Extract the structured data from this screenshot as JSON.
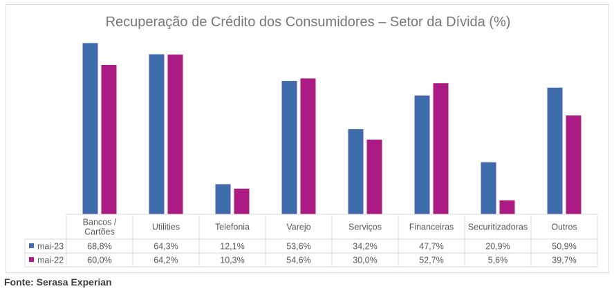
{
  "chart_data": {
    "type": "bar",
    "title": "Recuperação de Crédito dos Consumidores – Setor da Dívida (%)",
    "categories": [
      "Bancos / Cartões",
      "Utilities",
      "Telefonia",
      "Varejo",
      "Serviços",
      "Financeiras",
      "Securitizadoras",
      "Outros"
    ],
    "category_lines": [
      [
        "Bancos /",
        "Cartões"
      ],
      [
        "Utilities"
      ],
      [
        "Telefonia"
      ],
      [
        "Varejo"
      ],
      [
        "Serviços"
      ],
      [
        "Financeiras"
      ],
      [
        "Securitizadoras"
      ],
      [
        "Outros"
      ]
    ],
    "series": [
      {
        "name": "mai-23",
        "color": "#3f6aab",
        "values": [
          68.8,
          64.3,
          12.1,
          53.6,
          34.2,
          47.7,
          20.9,
          50.9
        ],
        "labels": [
          "68,8%",
          "64,3%",
          "12,1%",
          "53,6%",
          "34,2%",
          "47,7%",
          "20,9%",
          "50,9%"
        ]
      },
      {
        "name": "mai-22",
        "color": "#ac1a83",
        "values": [
          60.0,
          64.2,
          10.3,
          54.6,
          30.0,
          52.7,
          5.6,
          39.7
        ],
        "labels": [
          "60,0%",
          "64,2%",
          "10,3%",
          "54,6%",
          "30,0%",
          "52,7%",
          "5,6%",
          "39,7%"
        ]
      }
    ],
    "ylim": [
      0,
      75
    ],
    "grid": false,
    "legend": "data-table"
  },
  "source": "Fonte: Serasa Experian"
}
